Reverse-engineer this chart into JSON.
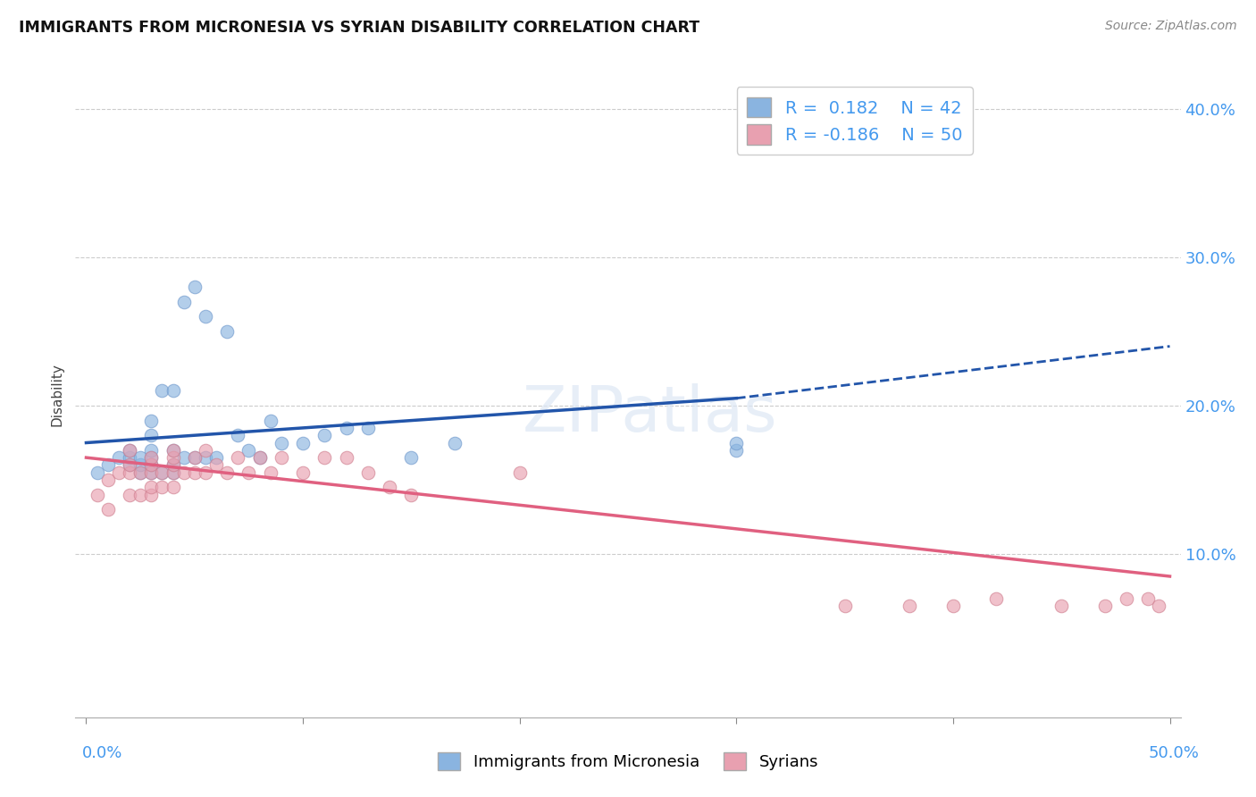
{
  "title": "IMMIGRANTS FROM MICRONESIA VS SYRIAN DISABILITY CORRELATION CHART",
  "source": "Source: ZipAtlas.com",
  "ylabel": "Disability",
  "blue_R": 0.182,
  "blue_N": 42,
  "pink_R": -0.186,
  "pink_N": 50,
  "blue_color": "#8ab4e0",
  "pink_color": "#e8a0b0",
  "blue_line_color": "#2255aa",
  "pink_line_color": "#e06080",
  "ytick_values": [
    0.0,
    0.1,
    0.2,
    0.3,
    0.4
  ],
  "xtick_values": [
    0.0,
    0.1,
    0.2,
    0.3,
    0.4,
    0.5
  ],
  "xlim": [
    -0.005,
    0.505
  ],
  "ylim": [
    -0.01,
    0.425
  ],
  "grid_color": "#cccccc",
  "background_color": "#ffffff",
  "legend_label_blue": "Immigrants from Micronesia",
  "legend_label_pink": "Syrians",
  "blue_scatter_x": [
    0.005,
    0.01,
    0.015,
    0.02,
    0.02,
    0.02,
    0.025,
    0.025,
    0.025,
    0.03,
    0.03,
    0.03,
    0.03,
    0.03,
    0.03,
    0.035,
    0.035,
    0.04,
    0.04,
    0.04,
    0.04,
    0.045,
    0.045,
    0.05,
    0.05,
    0.055,
    0.055,
    0.06,
    0.065,
    0.07,
    0.075,
    0.08,
    0.085,
    0.09,
    0.1,
    0.11,
    0.12,
    0.13,
    0.15,
    0.17,
    0.3,
    0.3
  ],
  "blue_scatter_y": [
    0.155,
    0.16,
    0.165,
    0.16,
    0.165,
    0.17,
    0.155,
    0.16,
    0.165,
    0.155,
    0.16,
    0.165,
    0.17,
    0.18,
    0.19,
    0.155,
    0.21,
    0.155,
    0.16,
    0.17,
    0.21,
    0.165,
    0.27,
    0.165,
    0.28,
    0.165,
    0.26,
    0.165,
    0.25,
    0.18,
    0.17,
    0.165,
    0.19,
    0.175,
    0.175,
    0.18,
    0.185,
    0.185,
    0.165,
    0.175,
    0.17,
    0.175
  ],
  "pink_scatter_x": [
    0.005,
    0.01,
    0.01,
    0.015,
    0.02,
    0.02,
    0.02,
    0.02,
    0.025,
    0.025,
    0.03,
    0.03,
    0.03,
    0.03,
    0.03,
    0.035,
    0.035,
    0.04,
    0.04,
    0.04,
    0.04,
    0.04,
    0.045,
    0.05,
    0.05,
    0.055,
    0.055,
    0.06,
    0.065,
    0.07,
    0.075,
    0.08,
    0.085,
    0.09,
    0.1,
    0.11,
    0.12,
    0.13,
    0.14,
    0.15,
    0.2,
    0.35,
    0.38,
    0.4,
    0.42,
    0.45,
    0.47,
    0.48,
    0.49,
    0.495
  ],
  "pink_scatter_y": [
    0.14,
    0.13,
    0.15,
    0.155,
    0.14,
    0.155,
    0.16,
    0.17,
    0.14,
    0.155,
    0.14,
    0.145,
    0.155,
    0.16,
    0.165,
    0.145,
    0.155,
    0.145,
    0.155,
    0.16,
    0.165,
    0.17,
    0.155,
    0.155,
    0.165,
    0.155,
    0.17,
    0.16,
    0.155,
    0.165,
    0.155,
    0.165,
    0.155,
    0.165,
    0.155,
    0.165,
    0.165,
    0.155,
    0.145,
    0.14,
    0.155,
    0.065,
    0.065,
    0.065,
    0.07,
    0.065,
    0.065,
    0.07,
    0.07,
    0.065
  ],
  "blue_line_x0": 0.0,
  "blue_line_x_solid_end": 0.3,
  "blue_line_x1": 0.5,
  "blue_line_y0": 0.175,
  "blue_line_y_solid_end": 0.205,
  "blue_line_y1": 0.24,
  "pink_line_x0": 0.0,
  "pink_line_x1": 0.5,
  "pink_line_y0": 0.165,
  "pink_line_y1": 0.085
}
